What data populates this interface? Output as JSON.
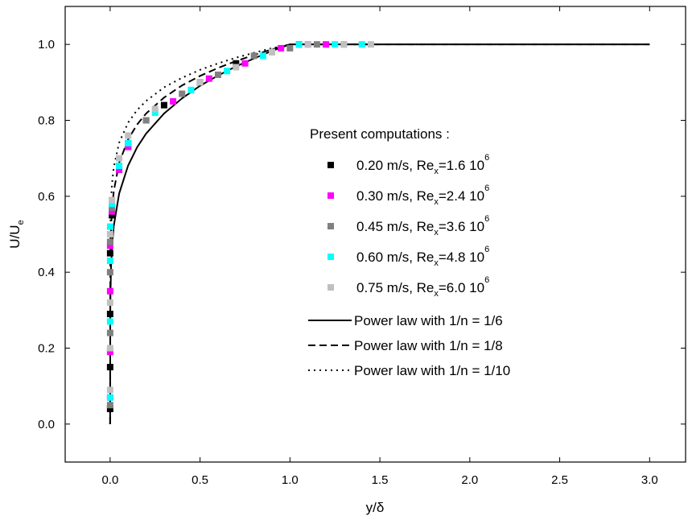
{
  "chart_data": {
    "type": "scatter",
    "xlabel": "y/δ",
    "ylabel": [
      "U/U",
      "e"
    ],
    "legend_title": "Present computations :",
    "xlim": [
      -0.25,
      3.2
    ],
    "ylim": [
      -0.1,
      1.1
    ],
    "xticks": [
      {
        "value": 0,
        "label": "0.0"
      },
      0.5,
      {
        "value": 1,
        "label": "1.0"
      },
      1.5,
      {
        "value": 2,
        "label": "2.0"
      },
      2.5,
      {
        "value": 3,
        "label": "3.0"
      }
    ],
    "yticks": [
      {
        "value": 0,
        "label": "0.0"
      },
      0.2,
      0.4,
      0.6,
      0.8,
      {
        "value": 1,
        "label": "1.0"
      }
    ],
    "series": [
      {
        "name": [
          "0.20 m/s, Re",
          "x",
          "=1.6 10",
          "6"
        ],
        "color": "#000000",
        "marker": "square",
        "x": [
          0,
          0,
          0,
          0,
          0.01,
          0.05,
          0.1,
          0.2,
          0.3,
          0.5,
          0.7,
          0.9,
          1.05
        ],
        "values": [
          0.04,
          0.15,
          0.29,
          0.45,
          0.55,
          0.67,
          0.73,
          0.8,
          0.84,
          0.9,
          0.95,
          0.98,
          1.0
        ]
      },
      {
        "name": [
          "0.30 m/s, Re",
          "x",
          "=2.4 10",
          "6"
        ],
        "color": "#ff00ff",
        "marker": "square",
        "x": [
          0,
          0,
          0,
          0,
          0.01,
          0.05,
          0.1,
          0.2,
          0.35,
          0.55,
          0.75,
          0.95,
          1.1,
          1.2
        ],
        "values": [
          0.07,
          0.19,
          0.35,
          0.47,
          0.56,
          0.67,
          0.73,
          0.8,
          0.85,
          0.91,
          0.95,
          0.99,
          1.0,
          1.0
        ]
      },
      {
        "name": [
          "0.45 m/s, Re",
          "x",
          "=3.6 10",
          "6"
        ],
        "color": "#808080",
        "marker": "square",
        "x": [
          0,
          0,
          0,
          0,
          0.01,
          0.05,
          0.1,
          0.2,
          0.4,
          0.6,
          0.8,
          1.0,
          1.15,
          1.3
        ],
        "values": [
          0.05,
          0.24,
          0.4,
          0.48,
          0.57,
          0.68,
          0.74,
          0.8,
          0.87,
          0.92,
          0.97,
          0.99,
          1.0,
          1.0
        ]
      },
      {
        "name": [
          "0.60 m/s, Re",
          "x",
          "=4.8 10",
          "6"
        ],
        "color": "#00ffff",
        "marker": "square",
        "x": [
          0,
          0,
          0,
          0,
          0.01,
          0.05,
          0.1,
          0.25,
          0.45,
          0.65,
          0.85,
          1.05,
          1.25,
          1.4
        ],
        "values": [
          0.07,
          0.27,
          0.43,
          0.52,
          0.58,
          0.68,
          0.74,
          0.82,
          0.88,
          0.93,
          0.97,
          1.0,
          1.0,
          1.0
        ]
      },
      {
        "name": [
          "0.75 m/s, Re",
          "x",
          "=6.0 10",
          "6"
        ],
        "color": "#c0c0c0",
        "marker": "square",
        "x": [
          0,
          0,
          0,
          0,
          0.01,
          0.05,
          0.1,
          0.25,
          0.5,
          0.7,
          0.9,
          1.1,
          1.3,
          1.45
        ],
        "values": [
          0.09,
          0.2,
          0.32,
          0.5,
          0.59,
          0.7,
          0.76,
          0.83,
          0.9,
          0.94,
          0.98,
          1.0,
          1.0,
          1.0
        ]
      },
      {
        "name": "Power law with 1/n = 1/6",
        "color": "#000000",
        "line_style": "solid",
        "x": [
          0,
          0.001,
          0.005,
          0.01,
          0.02,
          0.05,
          0.1,
          0.15,
          0.2,
          0.3,
          0.4,
          0.5,
          0.6,
          0.7,
          0.8,
          0.9,
          1.0,
          3.0
        ],
        "values": [
          0,
          0.316,
          0.414,
          0.464,
          0.521,
          0.607,
          0.681,
          0.729,
          0.765,
          0.818,
          0.858,
          0.891,
          0.918,
          0.942,
          0.963,
          0.983,
          1.0,
          1.0
        ]
      },
      {
        "name": "Power law with 1/n = 1/8",
        "color": "#000000",
        "line_style": "dash",
        "x": [
          0,
          0.001,
          0.005,
          0.01,
          0.02,
          0.05,
          0.1,
          0.15,
          0.2,
          0.3,
          0.4,
          0.5,
          0.6,
          0.7,
          0.8,
          0.9,
          1.0,
          3.0
        ],
        "values": [
          0,
          0.422,
          0.516,
          0.562,
          0.613,
          0.688,
          0.75,
          0.789,
          0.818,
          0.86,
          0.892,
          0.917,
          0.938,
          0.956,
          0.972,
          0.987,
          1.0,
          1.0
        ]
      },
      {
        "name": "Power law with 1/n = 1/10",
        "color": "#000000",
        "line_style": "dot",
        "x": [
          0,
          0.001,
          0.005,
          0.01,
          0.02,
          0.05,
          0.1,
          0.15,
          0.2,
          0.3,
          0.4,
          0.5,
          0.6,
          0.7,
          0.8,
          0.9,
          1.0,
          3.0
        ],
        "values": [
          0,
          0.501,
          0.589,
          0.631,
          0.676,
          0.741,
          0.794,
          0.827,
          0.851,
          0.887,
          0.912,
          0.933,
          0.95,
          0.965,
          0.978,
          0.99,
          1.0,
          1.0
        ]
      }
    ]
  }
}
